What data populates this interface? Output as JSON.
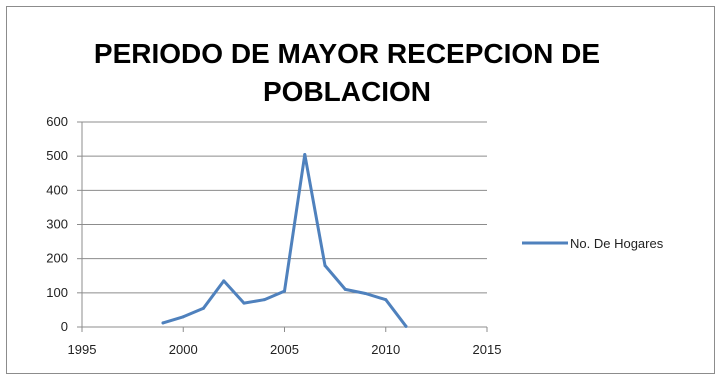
{
  "chart_data": {
    "type": "scatter",
    "title": "PERIODO DE MAYOR RECEPCION DE POBLACION",
    "xlabel": "",
    "ylabel": "",
    "xlim": [
      1995,
      2015
    ],
    "ylim": [
      0,
      600
    ],
    "x_ticks": [
      1995,
      2000,
      2005,
      2010,
      2015
    ],
    "y_ticks": [
      0,
      100,
      200,
      300,
      400,
      500,
      600
    ],
    "grid": true,
    "legend_position": "right",
    "series": [
      {
        "name": "No. De Hogares",
        "color": "#4f81bd",
        "line": true,
        "x": [
          1999,
          2000,
          2001,
          2002,
          2003,
          2004,
          2005,
          2006,
          2007,
          2008,
          2009,
          2010,
          2011
        ],
        "y": [
          12,
          30,
          55,
          135,
          70,
          80,
          105,
          505,
          180,
          110,
          98,
          80,
          2
        ]
      }
    ]
  }
}
